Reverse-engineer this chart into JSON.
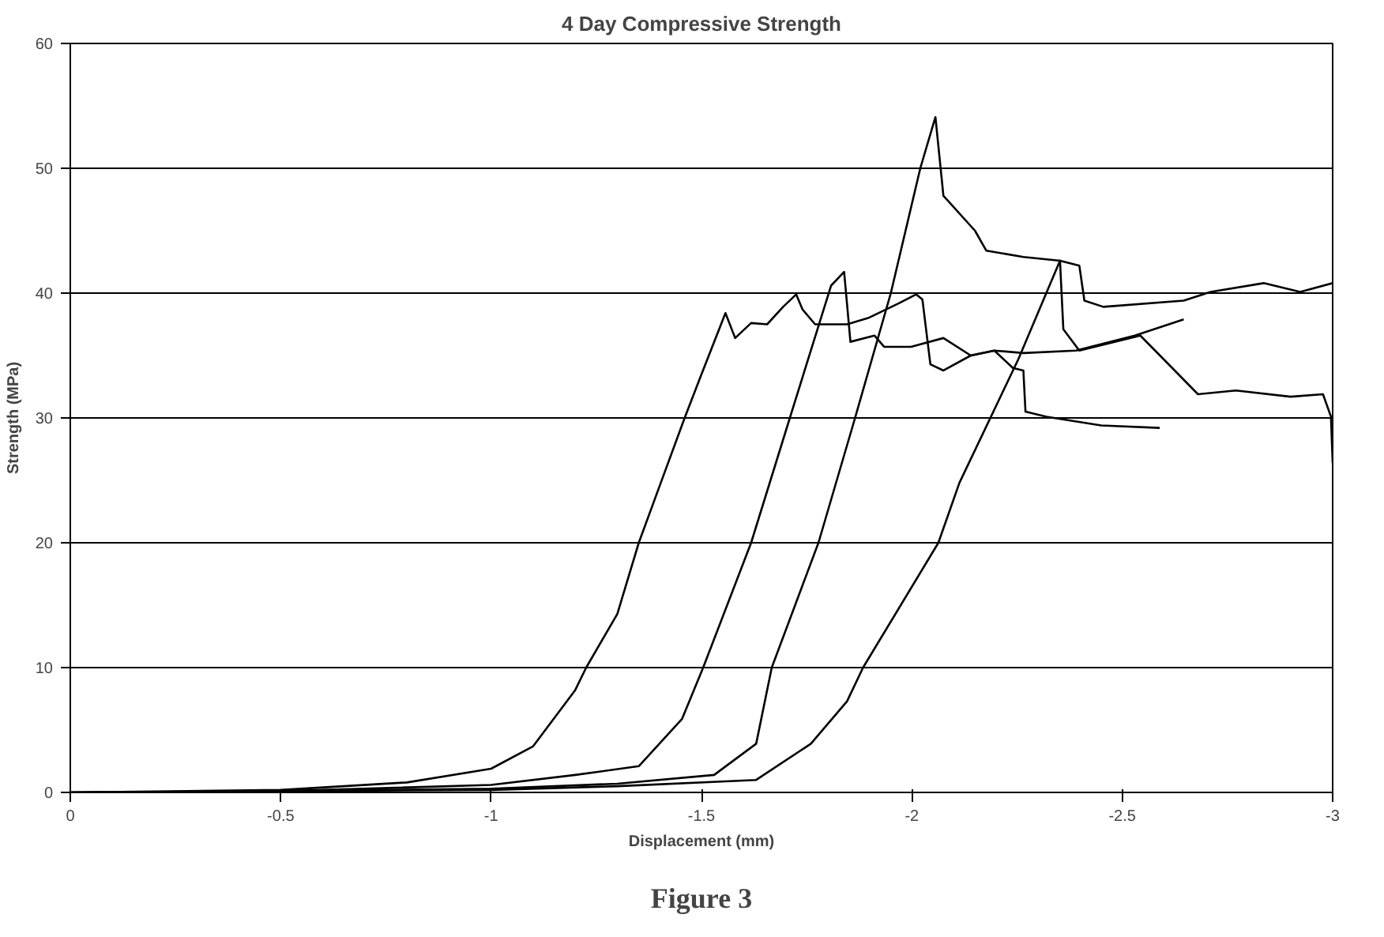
{
  "chart_data": {
    "type": "line",
    "title": "4 Day Compressive Strength",
    "xlabel": "Displacement (mm)",
    "ylabel": "Strength (MPa)",
    "annotations": [
      "Figure 3"
    ],
    "xlim": [
      0,
      -3
    ],
    "xticks": [
      0,
      -0.5,
      -1,
      -1.5,
      -2,
      -2.5,
      -3
    ],
    "ylim": [
      0,
      60
    ],
    "yticks": [
      0,
      10,
      20,
      30,
      40,
      50,
      60
    ],
    "grid": "y",
    "line_style": "solid",
    "marker": "none",
    "series": [
      {
        "color": "#000000",
        "x": [
          0,
          -0.5,
          -0.8,
          -1.0,
          -1.1,
          -1.2,
          -1.226,
          -1.3,
          -1.351,
          -1.4,
          -1.46,
          -1.5,
          -1.557,
          -1.58,
          -1.618,
          -1.656,
          -1.694,
          -1.725,
          -1.74,
          -1.77,
          -1.846,
          -1.896,
          -1.97,
          -2.01,
          -2.025,
          -2.044,
          -2.075,
          -2.14,
          -2.196,
          -2.24,
          -2.265,
          -2.27,
          -2.32,
          -2.45,
          -2.589
        ],
        "values": [
          0,
          0.2,
          0.8,
          1.9,
          3.7,
          8.2,
          10,
          14.3,
          20,
          24.5,
          30,
          33.5,
          38.4,
          36.4,
          37.6,
          37.5,
          38.9,
          39.9,
          38.7,
          37.5,
          37.5,
          38.0,
          39.2,
          39.9,
          39.5,
          34.3,
          33.8,
          35.0,
          35.4,
          34.0,
          33.8,
          30.5,
          30.1,
          29.4,
          29.2
        ]
      },
      {
        "color": "#000000",
        "x": [
          0,
          -0.5,
          -1.0,
          -1.2,
          -1.351,
          -1.454,
          -1.504,
          -1.618,
          -1.71,
          -1.808,
          -1.839,
          -1.854,
          -1.911,
          -1.934,
          -1.998,
          -2.075,
          -2.14,
          -2.196,
          -2.265,
          -2.39,
          -2.53,
          -2.646
        ],
        "values": [
          0,
          0.1,
          0.6,
          1.4,
          2.1,
          5.9,
          10,
          20,
          30,
          40.6,
          41.7,
          36.1,
          36.6,
          35.7,
          35.7,
          36.4,
          35.0,
          35.4,
          35.2,
          35.4,
          36.6,
          37.9
        ]
      },
      {
        "color": "#000000",
        "x": [
          0,
          -0.5,
          -1.0,
          -1.3,
          -1.53,
          -1.63,
          -1.667,
          -1.778,
          -1.865,
          -1.95,
          -2.02,
          -2.056,
          -2.075,
          -2.15,
          -2.177,
          -2.265,
          -2.352,
          -2.398,
          -2.41,
          -2.455,
          -2.646,
          -2.71,
          -2.836,
          -2.923,
          -3.0
        ],
        "values": [
          0,
          0.1,
          0.3,
          0.7,
          1.4,
          3.9,
          10,
          20,
          30,
          40,
          50,
          54.1,
          47.8,
          45.0,
          43.4,
          42.9,
          42.6,
          42.2,
          39.4,
          38.9,
          39.4,
          40.1,
          40.8,
          40.1,
          40.8
        ]
      },
      {
        "color": "#000000",
        "x": [
          0,
          -0.5,
          -1.0,
          -1.3,
          -1.63,
          -1.76,
          -1.846,
          -1.884,
          -2.063,
          -2.113,
          -2.253,
          -2.352,
          -2.36,
          -2.398,
          -2.543,
          -2.68,
          -2.77,
          -2.9,
          -2.977,
          -2.996,
          -3.0
        ],
        "values": [
          0,
          0.1,
          0.2,
          0.5,
          1.0,
          3.9,
          7.3,
          10,
          20,
          24.8,
          34.7,
          42.6,
          37.1,
          35.4,
          36.6,
          31.9,
          32.2,
          31.7,
          31.9,
          30.1,
          26.4
        ]
      }
    ]
  }
}
